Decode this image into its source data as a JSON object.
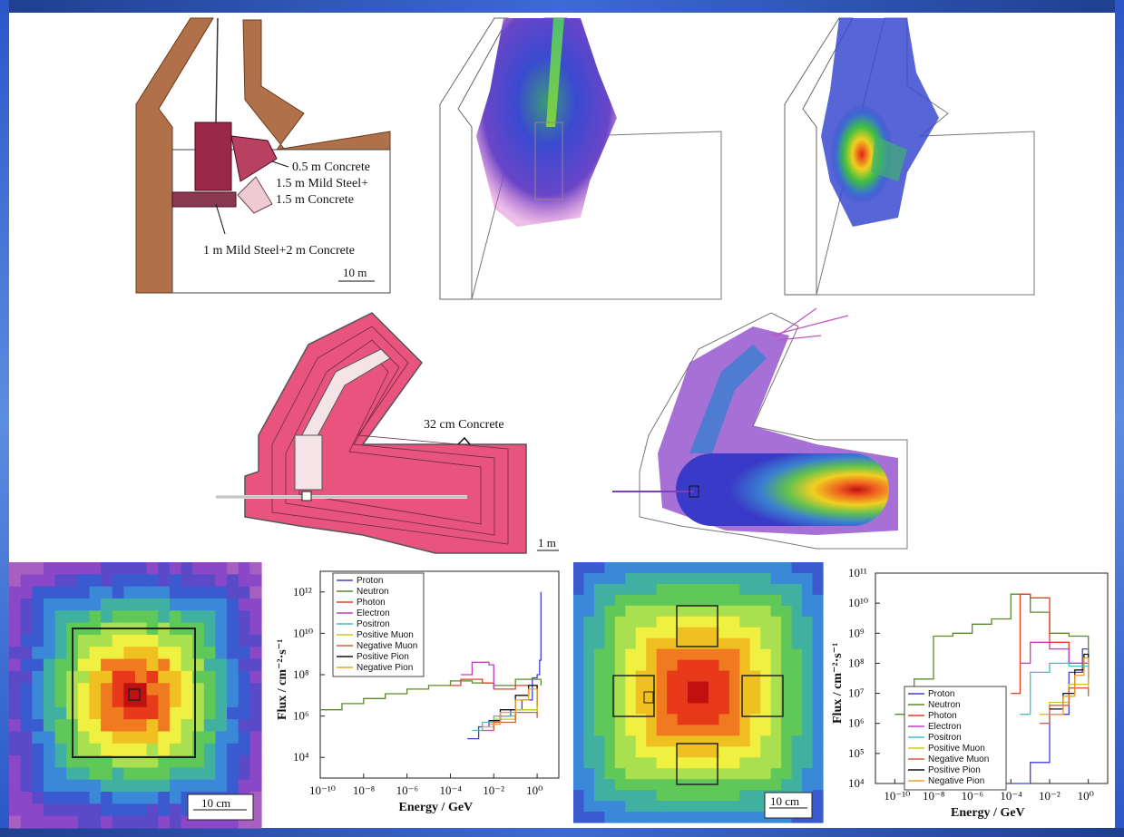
{
  "annotations": {
    "a1": "0.5 m Concrete",
    "a2": "1.5 m Mild Steel+",
    "a3": "1.5 m Concrete",
    "a4": "1 m Mild Steel+2 m Concrete",
    "scale_top": "10 m",
    "a5": "32 cm Concrete",
    "scale_mid": "1 m",
    "scale_bl": "10 cm",
    "scale_br": "10 cm"
  },
  "colors": {
    "wall_brown": "#b0704a",
    "tunnel_pink": "#e8547e",
    "dose_blue": "#4a5fd0",
    "dose_purple": "#9a3fb0",
    "hot_red": "#e8321e",
    "frame_blue": "#2a57c8"
  },
  "chart_data": [
    {
      "type": "line",
      "xlabel": "Energy / GeV",
      "ylabel": "Flux / cm⁻²·s⁻¹",
      "x_scale": "log",
      "y_scale": "log",
      "xlim": [
        1e-10,
        10
      ],
      "ylim": [
        1000.0,
        10000000000000.0
      ],
      "xticks": [
        "10⁻¹⁰",
        "10⁻⁸",
        "10⁻⁶",
        "10⁻⁴",
        "10⁻²",
        "10⁰"
      ],
      "yticks": [
        "10⁴",
        "10⁶",
        "10⁸",
        "10¹⁰",
        "10¹²"
      ],
      "legend_position": "top-left",
      "series": [
        {
          "name": "Proton",
          "color": "#4040d0",
          "x": [
            0.0006,
            0.002,
            0.006,
            0.02,
            0.06,
            0.2,
            0.6,
            1.0,
            1.3,
            1.5
          ],
          "y": [
            80000,
            300000,
            600000,
            1000000,
            2000000,
            6000000,
            70000000,
            100000000,
            500000000,
            1000000000000
          ]
        },
        {
          "name": "Neutron",
          "color": "#5a8a2a",
          "x": [
            1e-10,
            1e-09,
            1e-08,
            1e-07,
            1e-06,
            1e-05,
            0.0001,
            0.001,
            0.01,
            0.1,
            1.0,
            1.5
          ],
          "y": [
            2000000,
            4000000,
            7000000,
            12000000,
            20000000,
            30000000,
            50000000,
            40000000,
            30000000,
            60000000,
            60000000,
            30000000
          ]
        },
        {
          "name": "Photon",
          "color": "#e04020",
          "x": [
            0.0001,
            0.0003,
            0.001,
            0.003,
            0.01,
            0.1,
            1.0
          ],
          "y": [
            30000000,
            60000000,
            60000000,
            40000000,
            20000000,
            30000000,
            20000000
          ]
        },
        {
          "name": "Electron",
          "color": "#c040c0",
          "x": [
            0.0003,
            0.001,
            0.003,
            0.006,
            0.01
          ],
          "y": [
            100000000,
            400000000,
            400000000,
            300000000,
            20000000
          ]
        },
        {
          "name": "Positron",
          "color": "#40c0c0",
          "x": [
            0.001,
            0.003,
            0.01,
            0.1,
            1.0
          ],
          "y": [
            200000,
            500000,
            1000000,
            2000000,
            1000000
          ]
        },
        {
          "name": "Positive Muon",
          "color": "#c8c820",
          "x": [
            0.003,
            0.01,
            0.1,
            1.0
          ],
          "y": [
            300000,
            700000,
            2000000,
            1000000
          ]
        },
        {
          "name": "Negative Muon",
          "color": "#d06040",
          "x": [
            0.003,
            0.01,
            0.1,
            1.0
          ],
          "y": [
            200000,
            500000,
            1500000,
            800000
          ]
        },
        {
          "name": "Positive Pion",
          "color": "#101010",
          "x": [
            0.006,
            0.02,
            0.1,
            0.4,
            1.0
          ],
          "y": [
            600000,
            2000000,
            10000000,
            30000000,
            3000000
          ]
        },
        {
          "name": "Negative Pion",
          "color": "#f0a020",
          "x": [
            0.006,
            0.02,
            0.1,
            0.4,
            1.0
          ],
          "y": [
            400000,
            1500000,
            6000000,
            20000000,
            2000000
          ]
        }
      ]
    },
    {
      "type": "line",
      "xlabel": "Energy / GeV",
      "ylabel": "Flux / cm⁻²·s⁻¹",
      "x_scale": "log",
      "y_scale": "log",
      "xlim": [
        1e-11,
        10
      ],
      "ylim": [
        10000.0,
        100000000000.0
      ],
      "xticks": [
        "10⁻¹⁰",
        "10⁻⁸",
        "10⁻⁶",
        "10⁻⁴",
        "10⁻²",
        "10⁰"
      ],
      "yticks": [
        "10⁴",
        "10⁵",
        "10⁶",
        "10⁷",
        "10⁸",
        "10⁹",
        "10¹⁰",
        "10¹¹"
      ],
      "legend_position": "bottom-left",
      "series": [
        {
          "name": "Proton",
          "color": "#4040d0",
          "x": [
            0.0001,
            0.001,
            0.01,
            0.1,
            0.5,
            1.0
          ],
          "y": [
            10000,
            50000,
            2000000,
            50000000,
            300000000,
            50000000
          ]
        },
        {
          "name": "Neutron",
          "color": "#5a8a2a",
          "x": [
            1e-10,
            1e-09,
            1e-08,
            1e-07,
            1e-06,
            1e-05,
            0.0001,
            0.001,
            0.01,
            0.1,
            1.0
          ],
          "y": [
            2000000,
            30000000,
            800000000,
            1000000000,
            2000000000,
            3000000000,
            20000000000,
            5000000000,
            1000000000,
            800000000,
            100000000
          ]
        },
        {
          "name": "Photon",
          "color": "#e04020",
          "x": [
            0.0001,
            0.0003,
            0.001,
            0.01,
            0.1,
            1.0
          ],
          "y": [
            10000000,
            20000000000,
            15000000000,
            500000000,
            100000000,
            50000000
          ]
        },
        {
          "name": "Electron",
          "color": "#c040c0",
          "x": [
            0.0003,
            0.001,
            0.01,
            0.1,
            1.0
          ],
          "y": [
            100000000,
            500000000,
            300000000,
            100000000,
            30000000
          ]
        },
        {
          "name": "Positron",
          "color": "#40c0c0",
          "x": [
            0.0003,
            0.001,
            0.01,
            0.1,
            1.0
          ],
          "y": [
            2000000,
            50000000,
            100000000,
            80000000,
            20000000
          ]
        },
        {
          "name": "Positive Muon",
          "color": "#c8c820",
          "x": [
            0.003,
            0.01,
            0.1,
            1.0
          ],
          "y": [
            2000000,
            5000000,
            20000000,
            10000000
          ]
        },
        {
          "name": "Negative Muon",
          "color": "#d06040",
          "x": [
            0.003,
            0.01,
            0.1,
            1.0
          ],
          "y": [
            1000000,
            4000000,
            15000000,
            8000000
          ]
        },
        {
          "name": "Positive Pion",
          "color": "#101010",
          "x": [
            0.01,
            0.05,
            0.2,
            0.6,
            1.0
          ],
          "y": [
            3000000,
            10000000,
            60000000,
            200000000,
            30000000
          ]
        },
        {
          "name": "Negative Pion",
          "color": "#f0a020",
          "x": [
            0.01,
            0.05,
            0.2,
            0.6,
            1.0
          ],
          "y": [
            2000000,
            8000000,
            40000000,
            150000000,
            20000000
          ]
        }
      ]
    }
  ]
}
